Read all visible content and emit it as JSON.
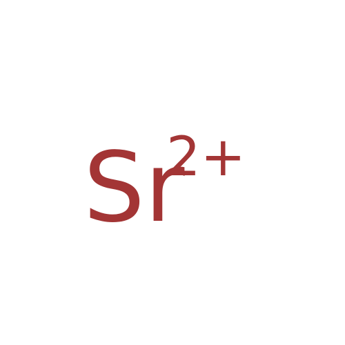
{
  "ion": {
    "element_symbol": "Sr",
    "charge": "2+",
    "color": "#a33535"
  }
}
